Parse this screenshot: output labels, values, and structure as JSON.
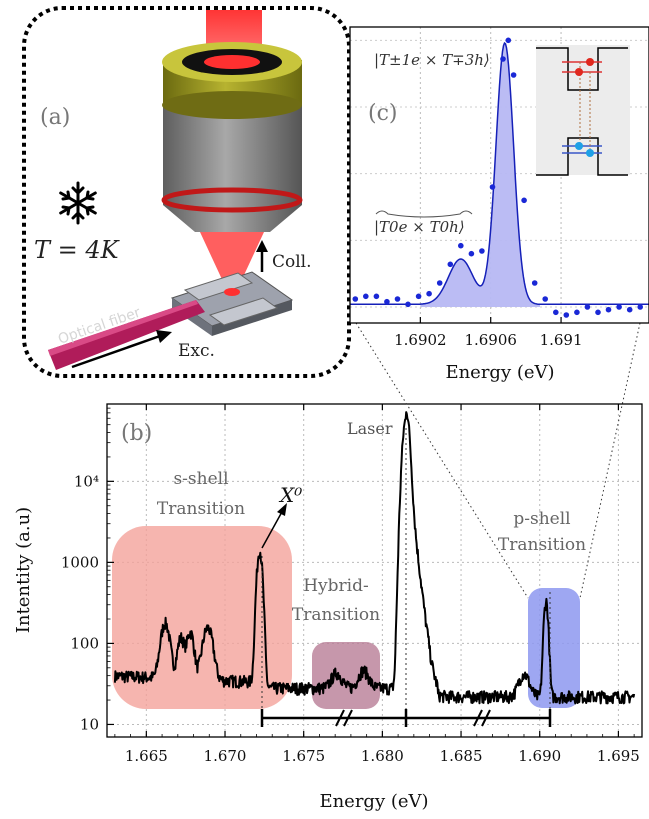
{
  "panel_a": {
    "label": "(a)",
    "temperature": "T = 4K",
    "coll_label": "Coll.",
    "exc_label": "Exc.",
    "fiber_label": "Optical fiber"
  },
  "chart_data": [
    {
      "type": "line",
      "panel": "(b)",
      "xlabel": "Energy (eV)",
      "ylabel": "Intentity (a.u)",
      "xlim": [
        1.6625,
        1.6965
      ],
      "ylim": [
        7,
        90000
      ],
      "yscale": "log",
      "grid": true,
      "xticks": [
        1.665,
        1.67,
        1.675,
        1.68,
        1.685,
        1.69,
        1.695
      ],
      "xtick_labels": [
        "1.665",
        "1.670",
        "1.675",
        "1.680",
        "1.685",
        "1.690",
        "1.695"
      ],
      "yticks": [
        10,
        100,
        1000,
        10000
      ],
      "ytick_labels": [
        "10",
        "100",
        "1000",
        "10⁴"
      ],
      "annotations": {
        "laser": "Laser",
        "x0": "X⁰",
        "s_shell": [
          "s-shell",
          "Transition"
        ],
        "hybrid": [
          "Hybrid-",
          "Transition"
        ],
        "p_shell": [
          "p-shell",
          "Transition"
        ]
      },
      "highlight_colors": {
        "s_shell": "#f4a098",
        "hybrid": "#b67a94",
        "p_shell": "#8d98f0"
      },
      "line_color": "#000000",
      "peaks": [
        {
          "x": 1.6662,
          "y": 170
        },
        {
          "x": 1.6672,
          "y": 110
        },
        {
          "x": 1.6678,
          "y": 130
        },
        {
          "x": 1.6689,
          "y": 150
        },
        {
          "x": 1.6722,
          "y": 1400
        },
        {
          "x": 1.6771,
          "y": 45
        },
        {
          "x": 1.6788,
          "y": 48
        },
        {
          "x": 1.6815,
          "y": 58000
        },
        {
          "x": 1.689,
          "y": 50
        },
        {
          "x": 1.6904,
          "y": 340
        }
      ]
    },
    {
      "type": "scatter",
      "panel": "(c)",
      "xlabel": "Energy (eV)",
      "xlim": [
        1.6898,
        1.6915
      ],
      "ylim": [
        -0.06,
        1.05
      ],
      "xticks": [
        1.6902,
        1.6906,
        1.691
      ],
      "xtick_labels": [
        "1.6902",
        "1.6906",
        "1.691"
      ],
      "annotations": {
        "upper": "|T±1e × T∓3h⟩",
        "lower": "|T0e × T0h⟩"
      },
      "fill_color": "#b7b8f3",
      "line_color": "#1520b8",
      "point_color": "#1a28d6",
      "points": [
        [
          1.68983,
          0.03
        ],
        [
          1.68989,
          0.04
        ],
        [
          1.68995,
          0.04
        ],
        [
          1.69001,
          0.02
        ],
        [
          1.69007,
          0.03
        ],
        [
          1.69013,
          0.01
        ],
        [
          1.69019,
          0.04
        ],
        [
          1.69025,
          0.05
        ],
        [
          1.69031,
          0.09
        ],
        [
          1.69037,
          0.16
        ],
        [
          1.69043,
          0.23
        ],
        [
          1.69049,
          0.2
        ],
        [
          1.69055,
          0.21
        ],
        [
          1.69061,
          0.45
        ],
        [
          1.69067,
          0.93
        ],
        [
          1.6907,
          1.0
        ],
        [
          1.69073,
          0.87
        ],
        [
          1.69079,
          0.4
        ],
        [
          1.69085,
          0.09
        ],
        [
          1.69091,
          0.03
        ],
        [
          1.69097,
          -0.02
        ],
        [
          1.69103,
          -0.03
        ],
        [
          1.69109,
          -0.02
        ],
        [
          1.69115,
          0.0
        ],
        [
          1.69121,
          -0.02
        ],
        [
          1.69127,
          -0.01
        ],
        [
          1.69133,
          0.0
        ],
        [
          1.69139,
          -0.01
        ],
        [
          1.69145,
          0.0
        ]
      ]
    }
  ]
}
